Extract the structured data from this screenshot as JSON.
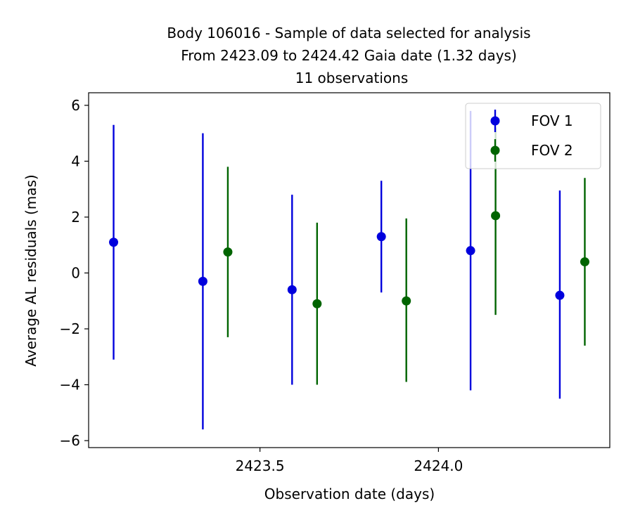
{
  "chart_data": {
    "type": "scatter",
    "title": [
      "Body 106016 - Sample of data selected for analysis",
      "From 2423.09 to 2424.42 Gaia date (1.32 days)",
      "11 observations"
    ],
    "xlabel": "Observation date (days)",
    "ylabel": "Average AL residuals (mas)",
    "xlim": [
      2423.02,
      2424.48
    ],
    "ylim": [
      -6.25,
      6.45
    ],
    "xticks": [
      2423.5,
      2424.0
    ],
    "xtick_labels": [
      "2423.5",
      "2424.0"
    ],
    "yticks": [
      -6,
      -4,
      -2,
      0,
      2,
      4,
      6
    ],
    "ytick_labels": [
      "−6",
      "−4",
      "−2",
      "0",
      "2",
      "4",
      "6"
    ],
    "legend_position": "top-right",
    "series": [
      {
        "name": "FOV 1",
        "color": "#0000dd",
        "points": [
          {
            "x": 2423.09,
            "y": 1.1,
            "ylow": -3.1,
            "yhigh": 5.3
          },
          {
            "x": 2423.34,
            "y": -0.3,
            "ylow": -5.6,
            "yhigh": 5.0
          },
          {
            "x": 2423.59,
            "y": -0.6,
            "ylow": -4.0,
            "yhigh": 2.8
          },
          {
            "x": 2423.84,
            "y": 1.3,
            "ylow": -0.7,
            "yhigh": 3.3
          },
          {
            "x": 2424.09,
            "y": 0.8,
            "ylow": -4.2,
            "yhigh": 5.8
          },
          {
            "x": 2424.34,
            "y": -0.8,
            "ylow": -4.5,
            "yhigh": 2.95
          }
        ]
      },
      {
        "name": "FOV 2",
        "color": "#006400",
        "points": [
          {
            "x": 2423.41,
            "y": 0.75,
            "ylow": -2.3,
            "yhigh": 3.8
          },
          {
            "x": 2423.66,
            "y": -1.1,
            "ylow": -4.0,
            "yhigh": 1.8
          },
          {
            "x": 2423.91,
            "y": -1.0,
            "ylow": -3.9,
            "yhigh": 1.95
          },
          {
            "x": 2424.16,
            "y": 2.05,
            "ylow": -1.5,
            "yhigh": 5.2
          },
          {
            "x": 2424.41,
            "y": 0.4,
            "ylow": -2.6,
            "yhigh": 3.4
          }
        ]
      }
    ]
  }
}
